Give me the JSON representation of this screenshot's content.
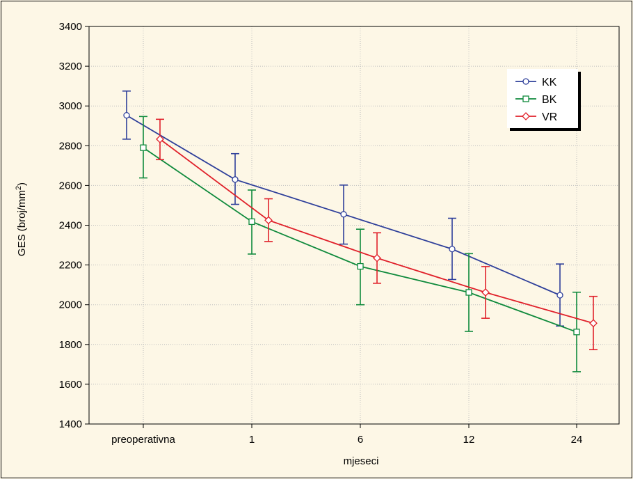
{
  "chart_data": {
    "type": "line",
    "xlabel": "mjeseci",
    "ylabel": "GES (broj/mm",
    "ylabel_sup": "2",
    "ylabel_close": ")",
    "categories": [
      "preoperativna",
      "1",
      "6",
      "12",
      "24"
    ],
    "ylim": [
      1400,
      3400
    ],
    "yticks": [
      "1400",
      "1600",
      "1800",
      "2000",
      "2200",
      "2400",
      "2600",
      "2800",
      "3000",
      "3200",
      "3400"
    ],
    "error_bars": true,
    "legend_position": "top-right",
    "series": [
      {
        "name": "KK",
        "color": "#2e3f9a",
        "marker": "circle",
        "values": [
          2953,
          2630,
          2455,
          2280,
          2048
        ],
        "lower": [
          2833,
          2505,
          2305,
          2127,
          1893
        ],
        "upper": [
          3075,
          2760,
          2602,
          2435,
          2205
        ]
      },
      {
        "name": "BK",
        "color": "#0f8a3c",
        "marker": "square",
        "values": [
          2790,
          2418,
          2193,
          2062,
          1863
        ],
        "lower": [
          2638,
          2255,
          2000,
          1866,
          1663
        ],
        "upper": [
          2947,
          2577,
          2380,
          2257,
          2063
        ]
      },
      {
        "name": "VR",
        "color": "#e0202a",
        "marker": "diamond",
        "values": [
          2833,
          2425,
          2235,
          2062,
          1907
        ],
        "lower": [
          2730,
          2318,
          2108,
          1932,
          1774
        ],
        "upper": [
          2933,
          2533,
          2362,
          2192,
          2042
        ]
      }
    ]
  }
}
